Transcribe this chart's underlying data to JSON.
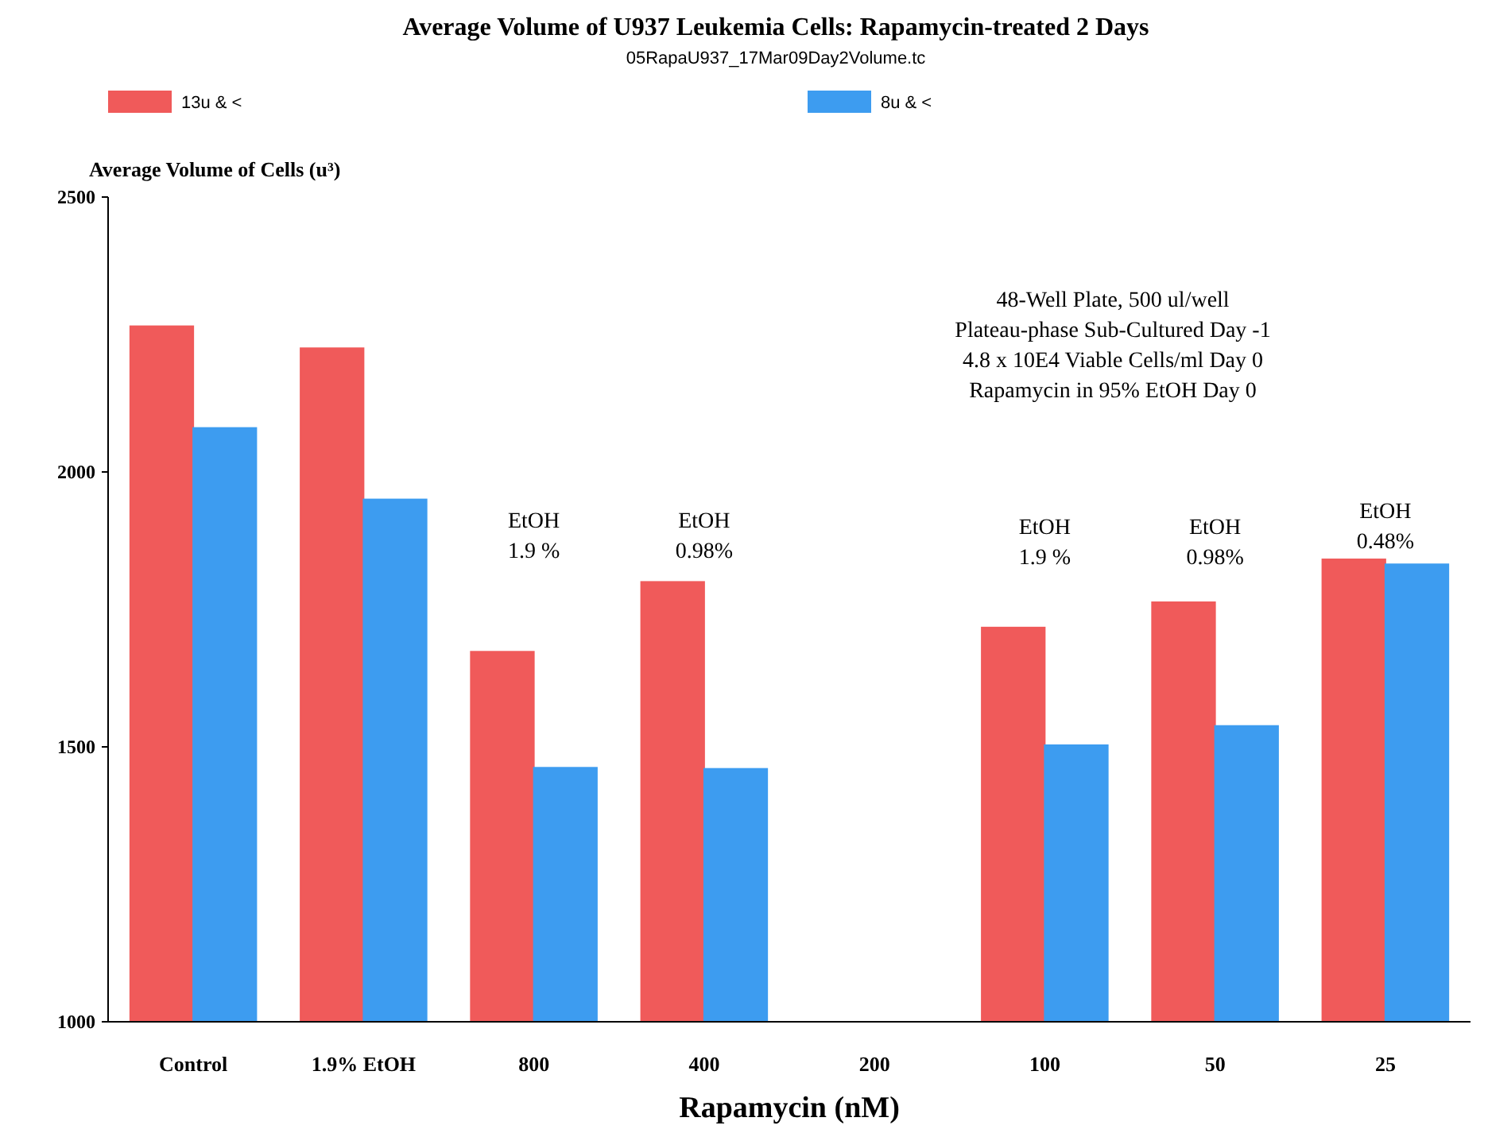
{
  "chart_data": {
    "type": "bar",
    "title": "Average Volume of U937 Leukemia Cells: Rapamycin-treated 2 Days",
    "subtitle": "05RapaU937_17Mar09Day2Volume.tc",
    "xlabel": "Rapamycin (nM)",
    "ylabel": "Average Volume of Cells (u³)",
    "categories": [
      "Control",
      "1.9% EtOH",
      "800",
      "400",
      "200",
      "100",
      "50",
      "25"
    ],
    "series": [
      {
        "name": "13u & <",
        "color": "#f05a5a",
        "values": [
          2265,
          2225,
          1673,
          1800,
          null,
          1717,
          1763,
          1841
        ]
      },
      {
        "name": "8u & <",
        "color": "#3d9cf0",
        "values": [
          2080,
          1950,
          1462,
          1460,
          null,
          1503,
          1538,
          1832
        ]
      }
    ],
    "ylim": [
      1000,
      2500
    ],
    "yticks": [
      1000,
      1500,
      2000,
      2500
    ],
    "grid": false,
    "legend": "top",
    "annotations": [
      "48-Well Plate, 500 ul/well\nPlateau-phase Sub-Cultured Day -1\n4.8 x 10E4 Viable Cells/ml Day 0\nRapamycin in 95% EtOH Day 0",
      "EtOH\n1.9 %",
      "EtOH\n0.98%",
      "EtOH\n1.9 %",
      "EtOH\n0.98%",
      "EtOH\n0.48%"
    ]
  }
}
